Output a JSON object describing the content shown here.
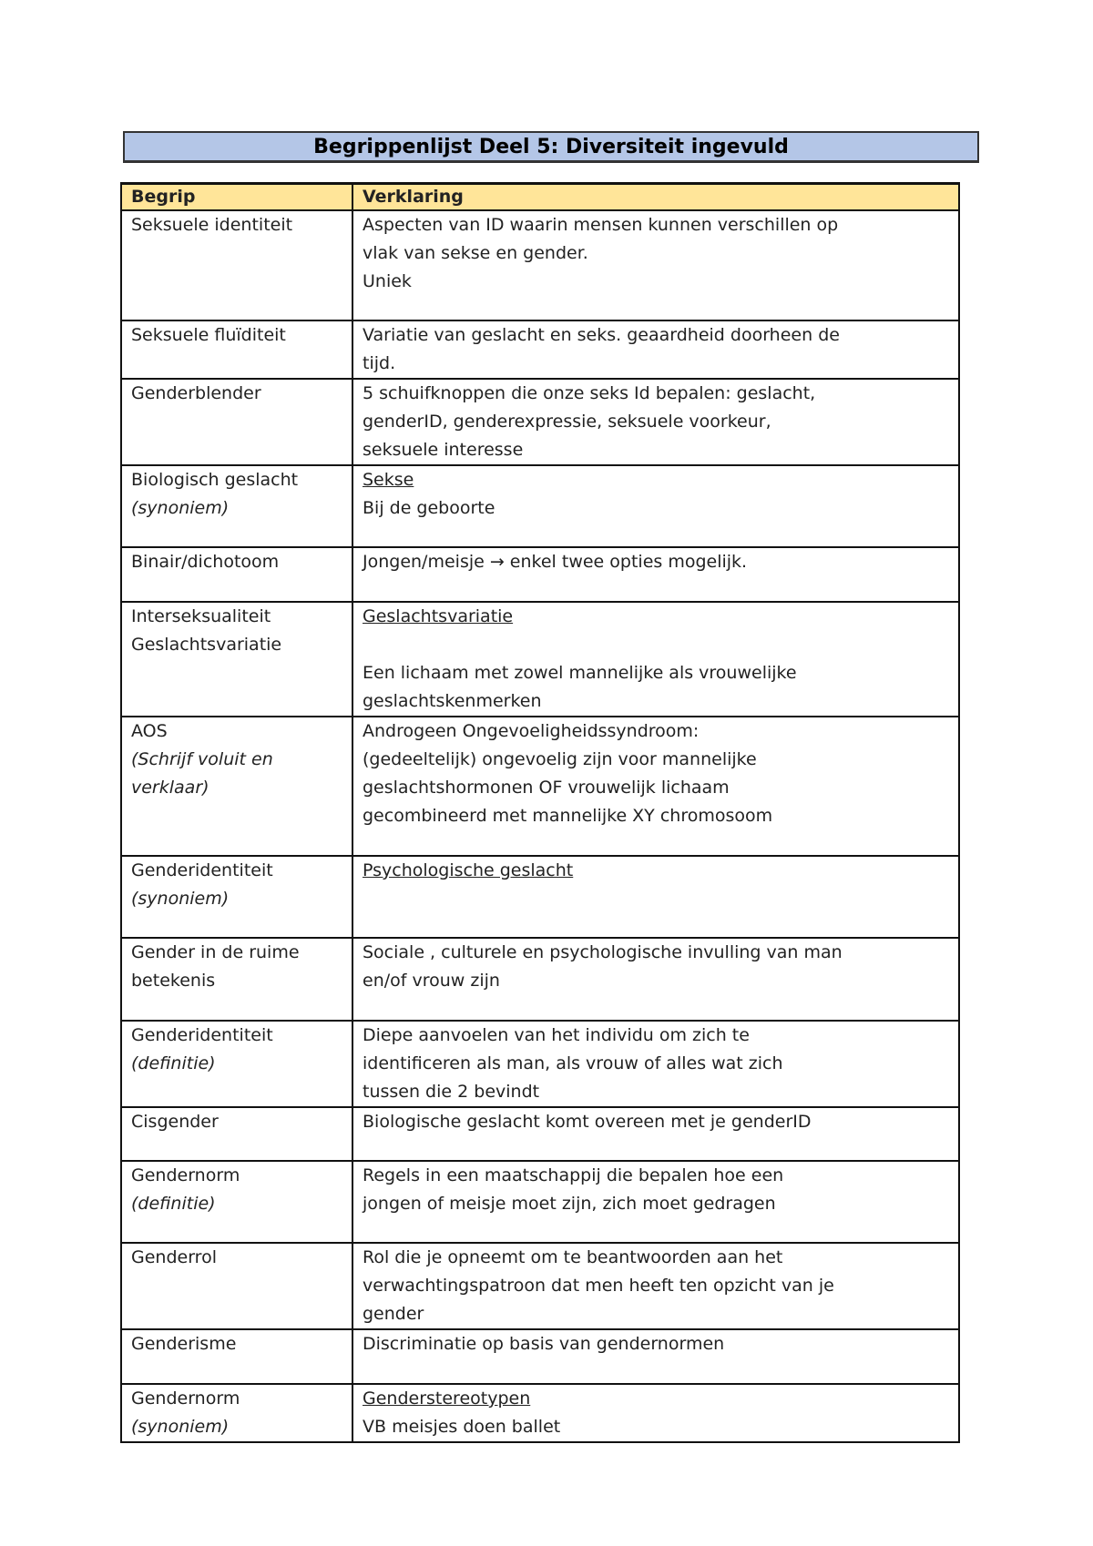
{
  "title": "Begrippenlijst Deel 5: Diversiteit ingevuld",
  "colors": {
    "title_bg": "#b4c6e7",
    "header_bg": "#ffe599"
  },
  "table": {
    "headers": [
      "Begrip",
      "Verklaring"
    ],
    "rows": [
      {
        "term": [
          {
            "t": "Seksuele identiteit"
          }
        ],
        "def": [
          {
            "t": "Aspecten van ID waarin mensen kunnen verschillen op"
          },
          {
            "t": "vlak van sekse en gender."
          },
          {
            "t": "Uniek"
          }
        ]
      },
      {
        "term": [
          {
            "t": "Seksuele fluïditeit"
          }
        ],
        "def": [
          {
            "t": "Variatie van geslacht en seks. geaardheid doorheen de"
          },
          {
            "t": "tijd."
          }
        ]
      },
      {
        "term": [
          {
            "t": "Genderblender"
          }
        ],
        "def": [
          {
            "t": "5 schuifknoppen die onze seks Id bepalen: geslacht,"
          },
          {
            "t": "genderID, genderexpressie, seksuele voorkeur,"
          },
          {
            "t": "seksuele interesse"
          }
        ]
      },
      {
        "term": [
          {
            "t": "Biologisch geslacht"
          },
          {
            "t": "(synoniem)",
            "i": true
          }
        ],
        "def": [
          {
            "t": "Sekse ",
            "u": true
          },
          {
            "t": "Bij de geboorte"
          }
        ]
      },
      {
        "term": [
          {
            "t": "Binair/dichotoom"
          }
        ],
        "def": [
          {
            "t": "Jongen/meisje → enkel twee opties mogelijk."
          }
        ]
      },
      {
        "term": [
          {
            "t": "Interseksualiteit"
          },
          {
            "t": "Geslachtsvariatie"
          }
        ],
        "def": [
          {
            "t": "Geslachtsvariatie",
            "u": true
          },
          {
            "t": ""
          },
          {
            "t": "Een lichaam met zowel mannelijke als vrouwelijke"
          },
          {
            "t": "geslachtskenmerken"
          }
        ]
      },
      {
        "term": [
          {
            "t": "AOS"
          },
          {
            "t": "(Schrijf voluit en",
            "i": true
          },
          {
            "t": "verklaar)",
            "i": true
          }
        ],
        "def": [
          {
            "t": "Androgeen Ongevoeligheidssyndroom:"
          },
          {
            "t": "(gedeeltelijk) ongevoelig zijn voor mannelijke"
          },
          {
            "t": "geslachtshormonen OF vrouwelijk lichaam"
          },
          {
            "t": "gecombineerd met mannelijke XY chromosoom"
          }
        ]
      },
      {
        "term": [
          {
            "t": "Genderidentiteit"
          },
          {
            "t": "(synoniem)",
            "i": true
          }
        ],
        "def": [
          {
            "t": "Psychologische geslacht ",
            "u": true
          }
        ]
      },
      {
        "term": [
          {
            "t": "Gender in de ruime"
          },
          {
            "t": "betekenis"
          }
        ],
        "def": [
          {
            "t": "Sociale , culturele en psychologische invulling van man"
          },
          {
            "t": "en/of vrouw zijn"
          }
        ]
      },
      {
        "term": [
          {
            "t": "Genderidentiteit"
          },
          {
            "t": "(definitie)",
            "i": true
          }
        ],
        "def": [
          {
            "t": "Diepe aanvoelen van het individu om zich te"
          },
          {
            "t": "identificeren als man, als vrouw of alles wat zich"
          },
          {
            "t": "tussen die 2 bevindt"
          }
        ]
      },
      {
        "term": [
          {
            "t": "Cisgender"
          }
        ],
        "def": [
          {
            "t": "Biologische geslacht komt overeen met je genderID"
          }
        ]
      },
      {
        "term": [
          {
            "t": "Gendernorm"
          },
          {
            "t": "(definitie)",
            "i": true
          }
        ],
        "def": [
          {
            "t": "Regels in een maatschappij die bepalen hoe een"
          },
          {
            "t": "jongen of meisje moet zijn, zich moet gedragen"
          }
        ]
      },
      {
        "term": [
          {
            "t": "Genderrol"
          }
        ],
        "def": [
          {
            "t": "Rol die je opneemt om te beantwoorden aan het"
          },
          {
            "t": "verwachtingspatroon dat men heeft ten opzicht van je"
          },
          {
            "t": "gender"
          }
        ]
      },
      {
        "term": [
          {
            "t": "Genderisme"
          }
        ],
        "def": [
          {
            "t": "Discriminatie op basis van gendernormen"
          }
        ]
      },
      {
        "term": [
          {
            "t": "Gendernorm"
          },
          {
            "t": "(synoniem)",
            "i": true
          }
        ],
        "def": [
          {
            "t": "Genderstereotypen",
            "u": true
          },
          {
            "t": "VB meisjes doen ballet"
          }
        ]
      }
    ]
  }
}
